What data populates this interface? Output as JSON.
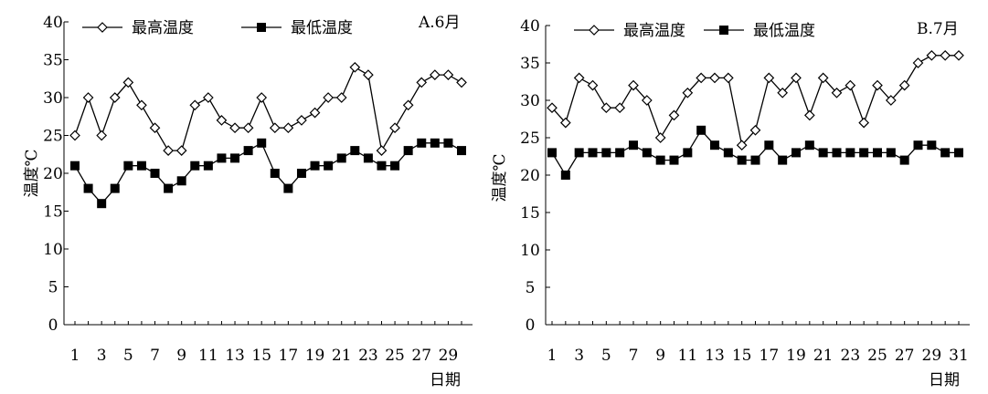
{
  "chart_data": [
    {
      "type": "line",
      "title": "A.6月",
      "xlabel": "日期",
      "ylabel": "温度℃",
      "ylim": [
        0,
        40
      ],
      "y_ticks": [
        0,
        5,
        10,
        15,
        20,
        25,
        30,
        35,
        40
      ],
      "x_tick_labels": [
        "1",
        "3",
        "5",
        "7",
        "9",
        "11",
        "13",
        "15",
        "17",
        "19",
        "21",
        "23",
        "25",
        "27",
        "29"
      ],
      "x": [
        1,
        2,
        3,
        4,
        5,
        6,
        7,
        8,
        9,
        10,
        11,
        12,
        13,
        14,
        15,
        16,
        17,
        18,
        19,
        20,
        21,
        22,
        23,
        24,
        25,
        26,
        27,
        28,
        29,
        30
      ],
      "xlim": [
        1,
        30
      ],
      "legend_position": "top",
      "grid": false,
      "series": [
        {
          "name": "最高温度",
          "marker": "diamond-open",
          "values": [
            25,
            30,
            25,
            30,
            32,
            29,
            26,
            23,
            23,
            29,
            30,
            27,
            26,
            26,
            30,
            26,
            26,
            27,
            28,
            30,
            30,
            34,
            33,
            23,
            26,
            29,
            32,
            33,
            33,
            32
          ]
        },
        {
          "name": "最低温度",
          "marker": "square-filled",
          "values": [
            21,
            18,
            16,
            18,
            21,
            21,
            20,
            18,
            19,
            21,
            21,
            22,
            22,
            23,
            24,
            20,
            18,
            20,
            21,
            21,
            22,
            23,
            22,
            21,
            21,
            23,
            24,
            24,
            24,
            23
          ]
        }
      ]
    },
    {
      "type": "line",
      "title": "B.7月",
      "xlabel": "日期",
      "ylabel": "温度℃",
      "ylim": [
        0,
        40
      ],
      "y_ticks": [
        0,
        5,
        10,
        15,
        20,
        25,
        30,
        35,
        40
      ],
      "x_tick_labels": [
        "1",
        "3",
        "5",
        "7",
        "9",
        "11",
        "13",
        "15",
        "17",
        "19",
        "21",
        "23",
        "25",
        "27",
        "29",
        "31"
      ],
      "x": [
        1,
        2,
        3,
        4,
        5,
        6,
        7,
        8,
        9,
        10,
        11,
        12,
        13,
        14,
        15,
        16,
        17,
        18,
        19,
        20,
        21,
        22,
        23,
        24,
        25,
        26,
        27,
        28,
        29,
        30,
        31
      ],
      "xlim": [
        1,
        31
      ],
      "legend_position": "top",
      "grid": false,
      "series": [
        {
          "name": "最高温度",
          "marker": "diamond-open",
          "values": [
            29,
            27,
            33,
            32,
            29,
            29,
            32,
            30,
            25,
            28,
            31,
            33,
            33,
            33,
            24,
            26,
            33,
            31,
            33,
            28,
            33,
            31,
            32,
            27,
            32,
            30,
            32,
            35,
            36,
            36,
            36
          ]
        },
        {
          "name": "最低温度",
          "marker": "square-filled",
          "values": [
            23,
            20,
            23,
            23,
            23,
            23,
            24,
            23,
            22,
            22,
            23,
            26,
            24,
            23,
            22,
            22,
            24,
            22,
            23,
            24,
            23,
            23,
            23,
            23,
            23,
            23,
            22,
            24,
            24,
            23,
            23
          ]
        }
      ]
    }
  ]
}
